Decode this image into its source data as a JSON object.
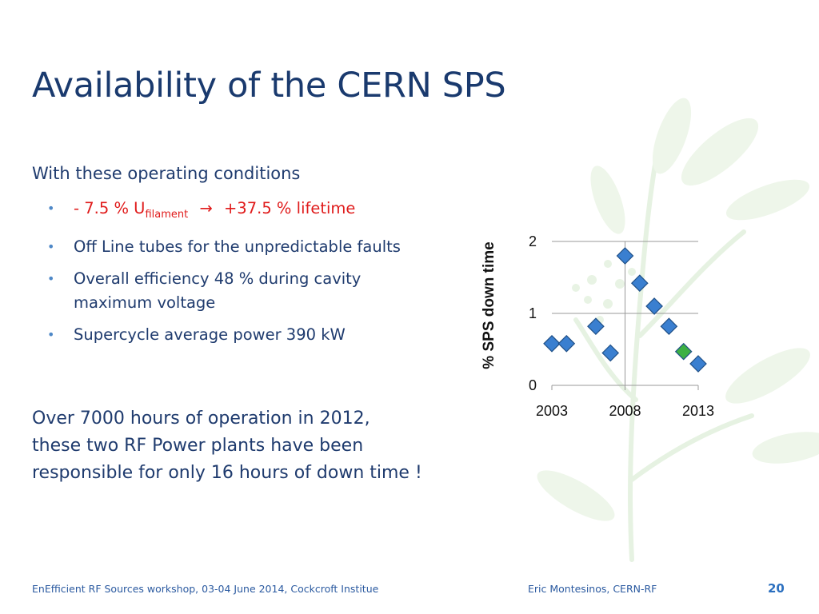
{
  "slide": {
    "title": "Availability of the CERN SPS",
    "intro": "With these operating conditions",
    "bullet1": {
      "prefix": "- 7.5 % U",
      "subscript": "filament",
      "arrow": "→",
      "suffix": "+37.5 % lifetime",
      "color": "#e01b1b"
    },
    "bullets": [
      "Off Line tubes for the unpredictable faults",
      "Overall efficiency 48 % during cavity maximum voltage",
      "Supercycle average power 390 kW"
    ],
    "paragraph": "Over 7000 hours of operation in 2012, these two RF Power plants have been responsible for only 16 hours of down time !",
    "footer": {
      "left": "EnEfficient RF Sources workshop, 03-04 June 2014, Cockcroft Institue",
      "middle": "Eric Montesinos, CERN-RF",
      "page": "20"
    }
  },
  "chart_data": {
    "type": "scatter",
    "ylabel": "% SPS down time",
    "ylim": [
      0,
      2
    ],
    "xlim": [
      2003,
      2013
    ],
    "x_ticks": [
      "2003",
      "2008",
      "2013"
    ],
    "y_ticks": [
      "0",
      "1",
      "2"
    ],
    "grid": true,
    "series": [
      {
        "points": [
          {
            "x": 2003,
            "y": 0.58,
            "color": "#3a7fd0"
          },
          {
            "x": 2004,
            "y": 0.58,
            "color": "#3a7fd0"
          },
          {
            "x": 2006,
            "y": 0.82,
            "color": "#3a7fd0"
          },
          {
            "x": 2007,
            "y": 0.45,
            "color": "#3a7fd0"
          },
          {
            "x": 2008,
            "y": 1.8,
            "color": "#3a7fd0"
          },
          {
            "x": 2009,
            "y": 1.42,
            "color": "#3a7fd0"
          },
          {
            "x": 2010,
            "y": 1.1,
            "color": "#3a7fd0"
          },
          {
            "x": 2011,
            "y": 0.82,
            "color": "#3a7fd0"
          },
          {
            "x": 2012,
            "y": 0.47,
            "color": "#3cb043"
          },
          {
            "x": 2013,
            "y": 0.3,
            "color": "#3a7fd0"
          }
        ]
      }
    ]
  }
}
